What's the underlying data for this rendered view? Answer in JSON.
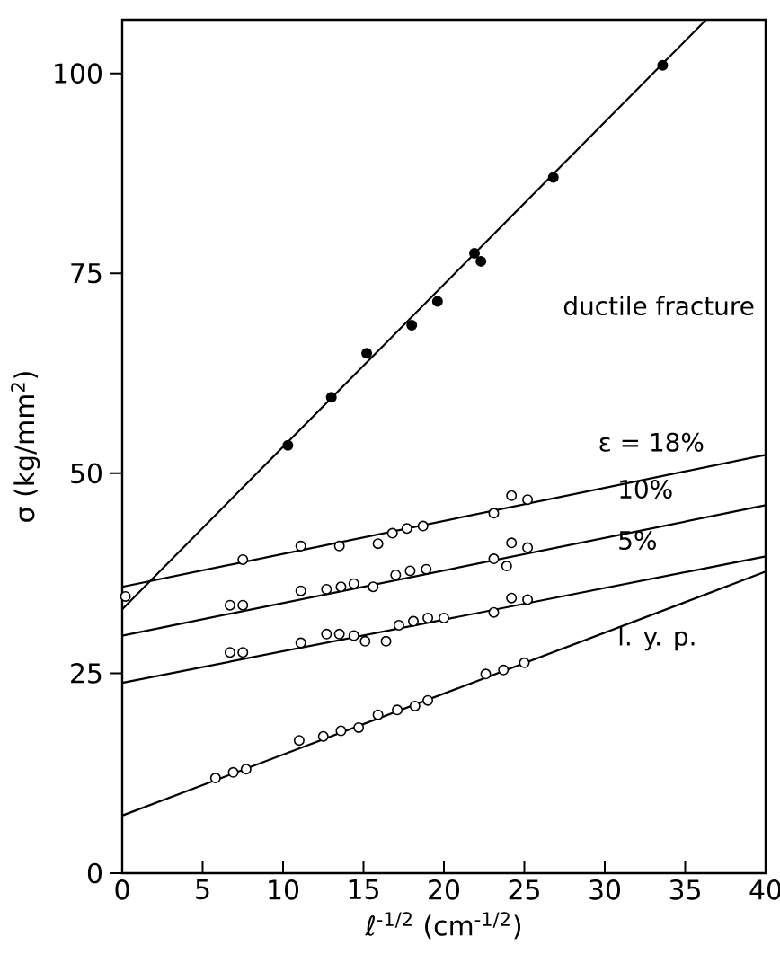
{
  "chart_data": {
    "type": "scatter",
    "xlabel": "ℓ$^{-1/2}$ (cm$^{-1/2}$)",
    "ylabel": "σ (kg/mm$^{2}$)",
    "xlim": [
      0,
      40
    ],
    "ylim": [
      0,
      106.7
    ],
    "xticks": [
      0,
      5,
      10,
      15,
      20,
      25,
      30,
      35,
      40
    ],
    "yticks": [
      0,
      25,
      50,
      75,
      100
    ],
    "grid": false,
    "series": [
      {
        "color": "#000000",
        "x": [
          10.3,
          13,
          15.2,
          18,
          19.6,
          21.9,
          22.3,
          26.8,
          33.6
        ],
        "values": [
          53.5,
          59.5,
          65,
          68.5,
          71.5,
          77.5,
          76.5,
          87,
          101
        ]
      },
      {
        "color": "#000000",
        "x": [
          0.2,
          7.5,
          11.1,
          13.5,
          15.9,
          16.8,
          17.7,
          18.7,
          23.1,
          24.2,
          25.2
        ],
        "values": [
          34.6,
          39.2,
          40.9,
          40.9,
          41.2,
          42.5,
          43.1,
          43.4,
          45,
          47.2,
          46.7
        ]
      },
      {
        "color": "#000000",
        "x": [
          6.7,
          7.5,
          11.1,
          12.7,
          13.6,
          14.4,
          15.6,
          17,
          17.9,
          18.9,
          23.1,
          23.9,
          24.2,
          25.2
        ],
        "values": [
          33.5,
          33.5,
          35.3,
          35.5,
          35.8,
          36.2,
          35.8,
          37.3,
          37.8,
          38,
          39.3,
          38.4,
          41.3,
          40.7
        ]
      },
      {
        "color": "#000000",
        "x": [
          6.7,
          7.5,
          11.1,
          12.7,
          13.5,
          14.4,
          15.1,
          16.4,
          17.2,
          18.1,
          19,
          20,
          23.1,
          24.2,
          25.2
        ],
        "values": [
          27.6,
          27.6,
          28.8,
          29.9,
          29.9,
          29.7,
          29,
          29,
          31,
          31.5,
          31.9,
          31.9,
          32.6,
          34.4,
          34.2
        ]
      },
      {
        "color": "#000000",
        "x": [
          5.8,
          6.9,
          7.7,
          11,
          12.5,
          13.6,
          14.7,
          15.9,
          17.1,
          18.2,
          19,
          22.6,
          23.7,
          25
        ],
        "values": [
          11.9,
          12.6,
          13,
          16.6,
          17.1,
          17.8,
          18.2,
          19.8,
          20.4,
          20.9,
          21.6,
          24.9,
          25.4,
          26.3
        ]
      },
      {
        "type": "line",
        "marker": "none",
        "color": "#000000",
        "x": [
          0,
          36.3
        ],
        "values": [
          33,
          106.7
        ]
      },
      {
        "type": "line",
        "marker": "none",
        "color": "#000000",
        "x": [
          0,
          40
        ],
        "values": [
          35.8,
          52.3
        ]
      },
      {
        "type": "line",
        "marker": "none",
        "color": "#000000",
        "x": [
          0,
          40
        ],
        "values": [
          29.7,
          46.0
        ]
      },
      {
        "type": "line",
        "marker": "none",
        "color": "#000000",
        "x": [
          0,
          40
        ],
        "values": [
          23.8,
          39.6
        ]
      },
      {
        "type": "line",
        "marker": "none",
        "color": "#000000",
        "x": [
          0,
          40
        ],
        "values": [
          7.2,
          37.7
        ]
      }
    ],
    "annotations": [
      "ductile fracture",
      "ε = 18%",
      "10%",
      "5%",
      "l. y. p."
    ]
  }
}
